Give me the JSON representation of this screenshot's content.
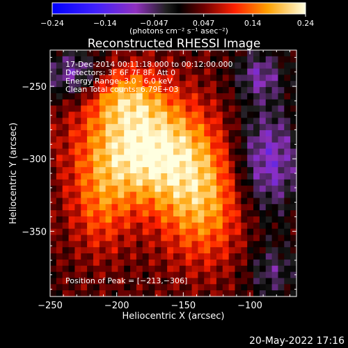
{
  "chart_data": {
    "type": "heatmap",
    "title": "Reconstructed RHESSI Image",
    "xlabel": "Heliocentric X (arcsec)",
    "ylabel": "Heliocentric Y (arcsec)",
    "xlim": [
      -250,
      -65
    ],
    "ylim": [
      -395,
      -225
    ],
    "x_ticks": [
      -250,
      -200,
      -150,
      -100
    ],
    "x_tick_labels": [
      "−250",
      "−200",
      "−150",
      "−100"
    ],
    "y_ticks": [
      -250,
      -300,
      -350
    ],
    "y_tick_labels": [
      "−250",
      "−300",
      "−350"
    ],
    "colorbar": {
      "range": [
        -0.24,
        0.24
      ],
      "ticks": [
        -0.24,
        -0.14,
        -0.047,
        0.047,
        0.14,
        0.24
      ],
      "tick_labels": [
        "−0.24",
        "−0.14",
        "−0.047",
        "0.047",
        "0.14",
        "0.24"
      ],
      "units_label": "(photons cm⁻² s⁻¹ asec⁻²)"
    },
    "info_lines": [
      "17-Dec-2014 00:11:18.000 to 00:12:00.000",
      "Detectors: 3F 6F 7F 8F, Att 0",
      "Energy Range: 3.0 - 6.0 keV",
      "Clean     Total counts: 6.79E+03"
    ],
    "peak_label": "Position of Peak = [−213,−306]",
    "peak": [
      -213,
      -306
    ]
  },
  "footer_date": "20-May-2022 17:16"
}
